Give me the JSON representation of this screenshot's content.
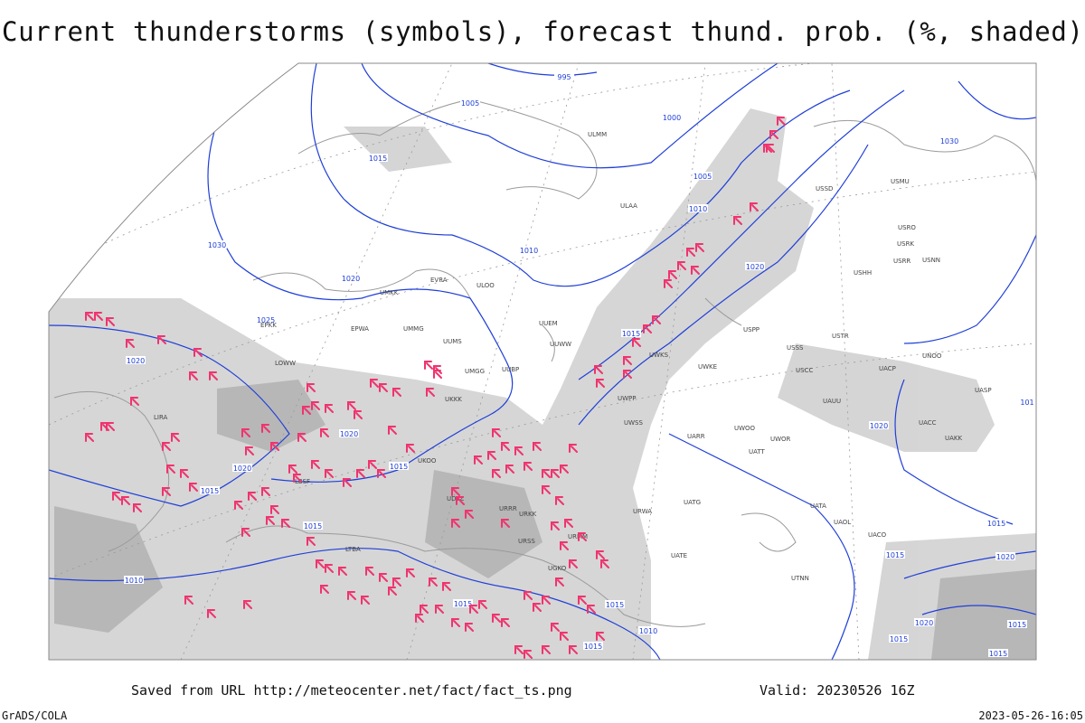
{
  "title": "Current thunderstorms (symbols), forecast thund. prob. (%, shaded)",
  "footer": {
    "source": "Saved from URL http://meteocenter.net/fact/fact_ts.png",
    "valid": "Valid: 20230526 16Z"
  },
  "credits": {
    "left": "GrADS/COLA",
    "right": "2023-05-26-16:05"
  },
  "isobar_labels": [
    "995",
    "1005",
    "1000",
    "1015",
    "1030",
    "1020",
    "1025",
    "1010",
    "1005",
    "1010",
    "1020",
    "1015",
    "1020",
    "1020",
    "1015",
    "1020",
    "1015",
    "1015",
    "1010",
    "1015",
    "1015",
    "1010",
    "1015",
    "1020",
    "1015",
    "1015",
    "1020",
    "1020",
    "1015",
    "1015",
    "1015",
    "1030",
    "101"
  ],
  "stations": [
    "UUEM",
    "UUWW",
    "UUMS",
    "UMGG",
    "UUBP",
    "UKKK",
    "ULOO",
    "EVRA",
    "UMKK",
    "EPWA",
    "UMMG",
    "ULAA",
    "ULMM",
    "USSS",
    "USCC",
    "USTR",
    "USPP",
    "UWKS",
    "UWKE",
    "UWPP",
    "UWSS",
    "UARR",
    "UATT",
    "UWOR",
    "UWOO",
    "UAUU",
    "UACC",
    "UAKK",
    "UASP",
    "UACP",
    "UNOO",
    "UNBB",
    "USHH",
    "USRR",
    "USNN",
    "USRK",
    "USRO",
    "USMU",
    "USSD",
    "UTNN",
    "UAOL",
    "UATA",
    "UACO",
    "UATG",
    "UATE",
    "URWA",
    "URMM",
    "URKK",
    "URRR",
    "URSS",
    "UGKO",
    "UDYZ",
    "LIRA",
    "EPKK",
    "LOWW",
    "LBSF",
    "LTBA",
    "UKOO"
  ]
}
